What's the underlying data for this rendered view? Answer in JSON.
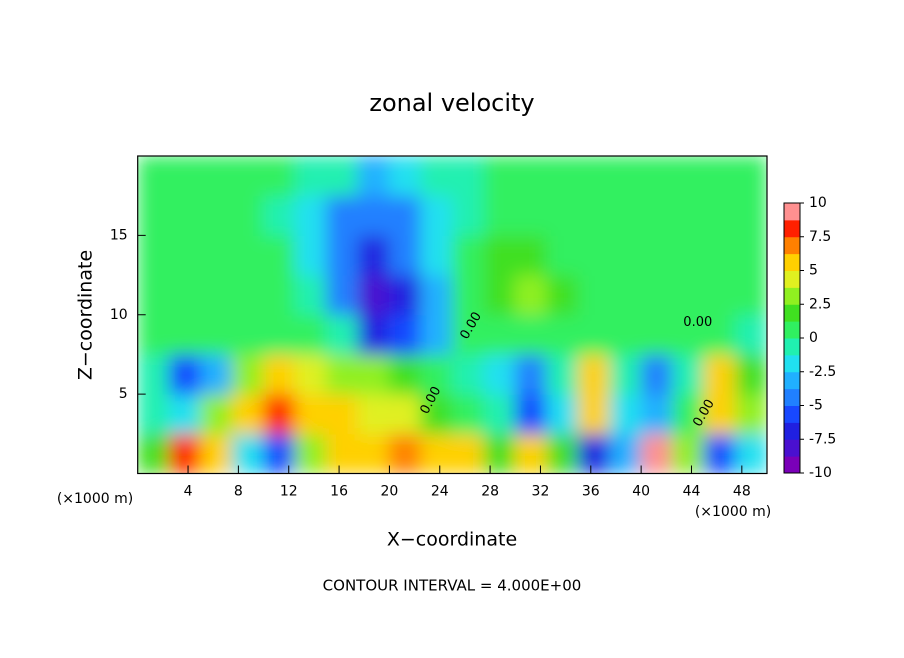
{
  "chart_data": {
    "type": "heatmap",
    "title": "zonal velocity",
    "x_label": "X−coordinate",
    "y_label": "Z−coordinate",
    "x_unit": "(×1000 m)",
    "footer": "CONTOUR INTERVAL = 4.000E+00",
    "contour_label": "0.00",
    "xlim": [
      0,
      50
    ],
    "xticks": [
      4,
      8,
      12,
      16,
      20,
      24,
      28,
      32,
      36,
      40,
      44,
      48
    ],
    "ylim": [
      0,
      20
    ],
    "yticks": [
      5,
      10,
      15
    ],
    "x": [
      1.25,
      3.75,
      6.25,
      8.75,
      11.25,
      13.75,
      16.25,
      18.75,
      21.25,
      23.75,
      26.25,
      28.75,
      31.25,
      33.75,
      36.25,
      38.75,
      41.25,
      43.75,
      46.25,
      48.75
    ],
    "y": [
      1.25,
      3.75,
      6.25,
      8.75,
      11.25,
      13.75,
      16.25,
      18.75
    ],
    "z": [
      [
        2,
        8,
        5,
        -2,
        -6,
        3,
        5,
        6,
        7,
        6,
        5,
        2,
        6,
        2,
        -7,
        -3,
        10,
        3,
        -6,
        -2
      ],
      [
        -1,
        -2,
        3,
        6,
        8,
        6,
        5,
        4,
        4,
        2,
        1,
        -1,
        -6,
        -2,
        5,
        -2,
        -3,
        1,
        5,
        3
      ],
      [
        -1,
        -6,
        -3,
        3,
        6,
        4,
        3,
        3,
        2,
        0,
        -1,
        -2,
        -5,
        -1,
        5,
        -1,
        -4,
        -1,
        6,
        2
      ],
      [
        0,
        1,
        1,
        1,
        1,
        0,
        -1,
        -7,
        -6,
        -3,
        0,
        1,
        1,
        1,
        1,
        0,
        0,
        1,
        1,
        -1
      ],
      [
        0,
        1,
        1,
        1,
        0,
        -1,
        -4,
        -8,
        -7,
        -3,
        1,
        2,
        3,
        2,
        1,
        1,
        1,
        1,
        0,
        0
      ],
      [
        1,
        1,
        1,
        1,
        0,
        -2,
        -5,
        -7,
        -5,
        -2,
        0,
        2,
        2,
        1,
        1,
        1,
        1,
        0,
        0,
        1
      ],
      [
        1,
        1,
        1,
        0,
        -1,
        -2,
        -4,
        -5,
        -4,
        -2,
        -1,
        0,
        1,
        1,
        1,
        1,
        1,
        0,
        1,
        1
      ],
      [
        1,
        1,
        1,
        1,
        0,
        -1,
        -1,
        -3,
        -2,
        -1,
        -1,
        0,
        1,
        1,
        1,
        1,
        1,
        0,
        1,
        1
      ]
    ],
    "zlim": [
      -10,
      10
    ],
    "zticks": [
      -10,
      -7.5,
      -5,
      -2.5,
      0,
      2.5,
      5,
      7.5,
      10
    ],
    "colors": [
      "#7a00b8",
      "#4a10d0",
      "#2020e0",
      "#1848ff",
      "#2080ff",
      "#20b0ff",
      "#20e0f0",
      "#20f0b0",
      "#30f060",
      "#40e020",
      "#90f020",
      "#e0f020",
      "#ffd000",
      "#ff8000",
      "#ff2000",
      "#ff9090"
    ]
  }
}
